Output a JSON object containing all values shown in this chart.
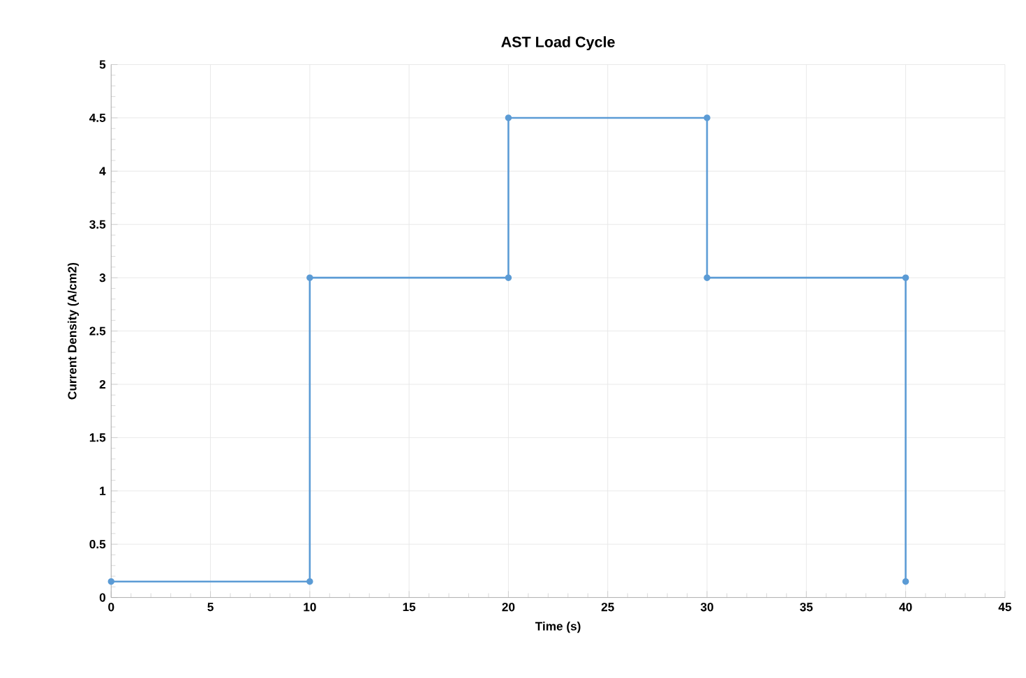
{
  "chart_data": {
    "type": "line",
    "title": "AST Load Cycle",
    "xlabel": "Time (s)",
    "ylabel": "Current Density (A/cm2)",
    "x": [
      0,
      10,
      10,
      20,
      20,
      30,
      30,
      40,
      40
    ],
    "series": [
      {
        "color": "#5b9bd5",
        "values": [
          0.15,
          0.15,
          3,
          3,
          4.5,
          4.5,
          3,
          3,
          0.15
        ]
      }
    ],
    "xlim": [
      0,
      45
    ],
    "ylim": [
      0,
      5
    ],
    "xticks": [
      0,
      5,
      10,
      15,
      20,
      25,
      30,
      35,
      40,
      45
    ],
    "yticks": [
      0,
      0.5,
      1,
      1.5,
      2,
      2.5,
      3,
      3.5,
      4,
      4.5,
      5
    ],
    "grid": true,
    "marker": "circle",
    "line_style": "solid"
  }
}
